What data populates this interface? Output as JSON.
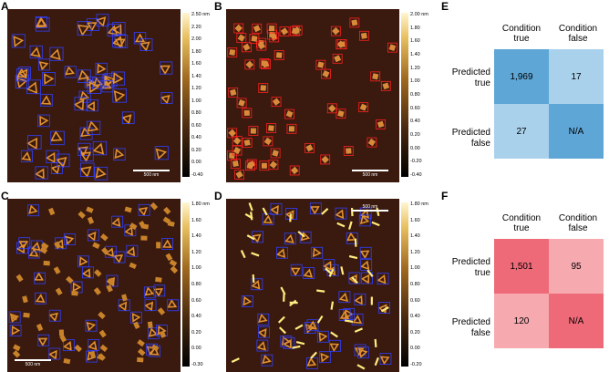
{
  "panels": {
    "A": {
      "label": "A",
      "cbar_ticks": [
        "2.50 nm",
        "2.20",
        "2.00",
        "1.80",
        "1.60",
        "1.40",
        "1.20",
        "1.00",
        "0.80",
        "0.60",
        "0.40",
        "0.20",
        "0.00",
        "-0.40"
      ],
      "scale": "500 nm"
    },
    "B": {
      "label": "B",
      "cbar_ticks": [
        "2.00 nm",
        "1.80",
        "1.60",
        "1.40",
        "1.20",
        "1.00",
        "0.80",
        "0.60",
        "0.40",
        "0.20",
        "0.00",
        "-0.20",
        "-0.40"
      ],
      "scale": "500 nm"
    },
    "C": {
      "label": "C",
      "cbar_ticks": [
        "1.80 nm",
        "1.60",
        "1.40",
        "1.20",
        "1.00",
        "0.80",
        "0.60",
        "0.40",
        "0.20",
        "0.00",
        "-0.30"
      ],
      "scale": "500 nm"
    },
    "D": {
      "label": "D",
      "cbar_ticks": [
        "1.80 nm",
        "1.60",
        "1.40",
        "1.20",
        "1.00",
        "0.80",
        "0.60",
        "0.40",
        "0.20",
        "0.00",
        "-0.20"
      ],
      "scale": "500 nm"
    }
  },
  "matrix_E": {
    "label": "E",
    "col_headers": [
      "Condition true",
      "Condition false"
    ],
    "row_headers": [
      "Predicted true",
      "Predicted false"
    ],
    "cells": [
      [
        "1,969",
        "17"
      ],
      [
        "27",
        "N/A"
      ]
    ],
    "colors": [
      [
        "#5ea6d6",
        "#a9d1ec"
      ],
      [
        "#a9d1ec",
        "#5ea6d6"
      ]
    ]
  },
  "matrix_F": {
    "label": "F",
    "col_headers": [
      "Condition true",
      "Condition false"
    ],
    "row_headers": [
      "Predicted true",
      "Predicted false"
    ],
    "cells": [
      [
        "1,501",
        "95"
      ],
      [
        "120",
        "N/A"
      ]
    ],
    "colors": [
      [
        "#ef6a78",
        "#f7a9b0"
      ],
      [
        "#f7a9b0",
        "#ef6a78"
      ]
    ]
  }
}
